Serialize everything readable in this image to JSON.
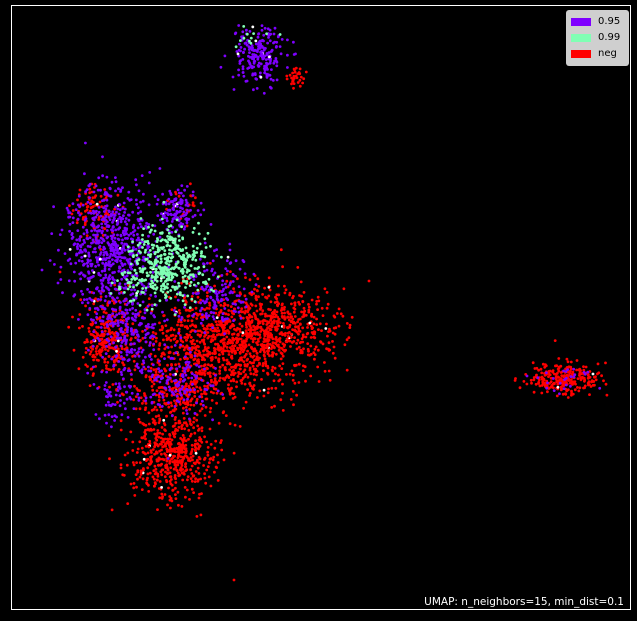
{
  "chart_data": {
    "type": "scatter",
    "title": "",
    "xlabel": "",
    "ylabel": "",
    "axes_visible": false,
    "grid": false,
    "background_color": "#000000",
    "legend_position": "top-right",
    "series": [
      {
        "name": "0.95",
        "color": "#7f00ff",
        "clusters": [
          {
            "cx": 260,
            "cy": 55,
            "sx": 13,
            "sy": 14,
            "n": 210
          },
          {
            "cx": 110,
            "cy": 245,
            "sx": 22,
            "sy": 30,
            "n": 620
          },
          {
            "cx": 178,
            "cy": 210,
            "sx": 10,
            "sy": 12,
            "n": 120
          },
          {
            "cx": 130,
            "cy": 330,
            "sx": 20,
            "sy": 30,
            "n": 320
          },
          {
            "cx": 215,
            "cy": 290,
            "sx": 16,
            "sy": 22,
            "n": 150
          },
          {
            "cx": 180,
            "cy": 385,
            "sx": 16,
            "sy": 16,
            "n": 120
          },
          {
            "cx": 115,
            "cy": 400,
            "sx": 10,
            "sy": 12,
            "n": 45
          },
          {
            "cx": 565,
            "cy": 380,
            "sx": 14,
            "sy": 6,
            "n": 25
          }
        ]
      },
      {
        "name": "0.99",
        "color": "#80ffb4",
        "clusters": [
          {
            "cx": 170,
            "cy": 262,
            "sx": 18,
            "sy": 18,
            "n": 380
          },
          {
            "cx": 135,
            "cy": 280,
            "sx": 12,
            "sy": 12,
            "n": 60
          },
          {
            "cx": 255,
            "cy": 40,
            "sx": 10,
            "sy": 8,
            "n": 12
          }
        ]
      },
      {
        "name": "neg",
        "color": "#ff0000",
        "clusters": [
          {
            "cx": 225,
            "cy": 345,
            "sx": 42,
            "sy": 26,
            "n": 1050
          },
          {
            "cx": 280,
            "cy": 322,
            "sx": 28,
            "sy": 18,
            "n": 340
          },
          {
            "cx": 172,
            "cy": 455,
            "sx": 22,
            "sy": 22,
            "n": 520
          },
          {
            "cx": 108,
            "cy": 335,
            "sx": 14,
            "sy": 20,
            "n": 280
          },
          {
            "cx": 95,
            "cy": 215,
            "sx": 10,
            "sy": 14,
            "n": 90
          },
          {
            "cx": 565,
            "cy": 379,
            "sx": 17,
            "sy": 8,
            "n": 260
          },
          {
            "cx": 297,
            "cy": 78,
            "sx": 5,
            "sy": 6,
            "n": 30
          },
          {
            "cx": 175,
            "cy": 395,
            "sx": 22,
            "sy": 14,
            "n": 210
          },
          {
            "cx": 185,
            "cy": 205,
            "sx": 8,
            "sy": 8,
            "n": 25
          }
        ]
      }
    ],
    "point_size": 1.4,
    "white_point_fraction": 0.012,
    "legend": [
      {
        "label": "0.95",
        "color": "#7f00ff"
      },
      {
        "label": "0.99",
        "color": "#80ffb4"
      },
      {
        "label": "neg",
        "color": "#ff0000"
      }
    ]
  },
  "caption": "UMAP: n_neighbors=15, min_dist=0.1"
}
